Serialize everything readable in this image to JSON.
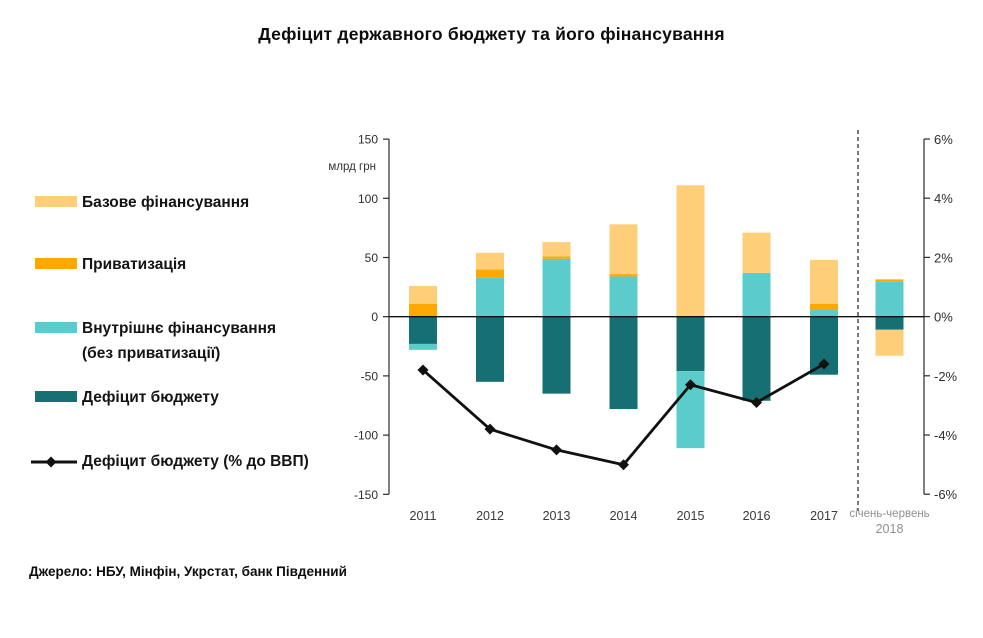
{
  "title": "Дефіцит державного бюджету та його фінансування",
  "source": "Джерело: НБУ, Мінфін, Укрстат, банк Південний",
  "colors": {
    "base": "#FFCE78",
    "privatization": "#FFA800",
    "internal": "#5CCBCB",
    "deficit": "#166F72",
    "line": "#111111",
    "axis": "#2b2b2b"
  },
  "legend": {
    "items": [
      {
        "key": "base",
        "label": "Базове фінансування"
      },
      {
        "key": "privatization",
        "label": "Приватизація"
      },
      {
        "key": "internal",
        "label": "Внутрішнє фінансування",
        "label2": "(без приватизації)"
      },
      {
        "key": "deficit",
        "label": "Дефіцит бюджету"
      },
      {
        "key": "line",
        "label": "Дефіцит бюджету (% до ВВП)"
      }
    ]
  },
  "chart_data": {
    "type": "stacked-bar+line",
    "title": "Дефіцит державного бюджету та його фінансування",
    "categories": [
      "2011",
      "2012",
      "2013",
      "2014",
      "2015",
      "2016",
      "2017",
      "січень-червень 2018"
    ],
    "series": [
      {
        "name": "Дефіцит бюджету",
        "key": "deficit",
        "values": [
          -23,
          -55,
          -65,
          -78,
          -46,
          -71,
          -49,
          -11
        ]
      },
      {
        "name": "Внутрішнє фінансування (без приватизації)",
        "key": "internal",
        "values": [
          -5,
          33,
          49,
          34,
          -65,
          37,
          6,
          30
        ]
      },
      {
        "name": "Приватизація",
        "key": "privatization",
        "values": [
          11,
          7,
          2,
          2,
          0,
          0,
          5,
          1.5
        ]
      },
      {
        "name": "Базове фінансування",
        "key": "base",
        "values": [
          15,
          14,
          12,
          42,
          111,
          34,
          37,
          -22
        ]
      }
    ],
    "line_series": {
      "name": "Дефіцит бюджету (% до ВВП)",
      "values": [
        -1.8,
        -3.8,
        -4.5,
        -5.0,
        -2.3,
        -2.9,
        -1.6,
        null
      ]
    },
    "left_axis": {
      "label": "млрд грн",
      "ticks": [
        150,
        100,
        50,
        0,
        -50,
        -100,
        -150
      ],
      "range": [
        -150,
        150
      ]
    },
    "right_axis": {
      "ticks": [
        "6%",
        "4%",
        "2%",
        "0%",
        "-2%",
        "-4%",
        "-6%"
      ],
      "range": [
        -6,
        6
      ]
    },
    "x_axis": {
      "years": [
        "2011",
        "2012",
        "2013",
        "2014",
        "2015",
        "2016",
        "2017"
      ],
      "last_period_line1": "січень-червень",
      "last_period_line2": "2018"
    },
    "layout": {
      "grid": false,
      "legend_position": "left",
      "separator_after_category": "2017"
    }
  }
}
